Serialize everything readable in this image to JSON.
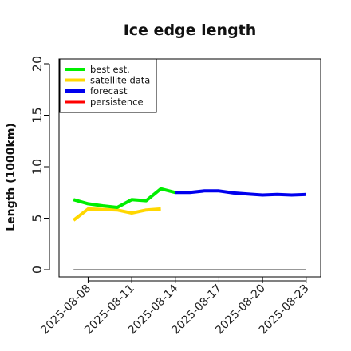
{
  "chart_data": {
    "type": "line",
    "title": "Ice edge length",
    "xlabel": "",
    "ylabel": "Length (1000km)",
    "ylim": [
      0,
      21
    ],
    "xlim": [
      "2025-08-06",
      "2025-08-24"
    ],
    "yticks": [
      "0",
      "5",
      "10",
      "15",
      "20"
    ],
    "xticks": [
      "2025-08-08",
      "2025-08-11",
      "2025-08-14",
      "2025-08-17",
      "2025-08-20",
      "2025-08-23"
    ],
    "highlight_xtick": "2025-08-14",
    "highlight_color": "#228b22",
    "legend_position": "top-left",
    "grid": false,
    "series": [
      {
        "name": "best est.",
        "color": "#00ee00",
        "x": [
          "2025-08-07",
          "2025-08-08",
          "2025-08-09",
          "2025-08-10",
          "2025-08-11",
          "2025-08-12",
          "2025-08-13",
          "2025-08-14"
        ],
        "values": [
          6.8,
          6.4,
          6.2,
          6.05,
          6.8,
          6.7,
          7.85,
          7.5
        ]
      },
      {
        "name": "satellite data",
        "color": "#ffd700",
        "x": [
          "2025-08-07",
          "2025-08-08",
          "2025-08-09",
          "2025-08-10",
          "2025-08-11",
          "2025-08-12",
          "2025-08-13"
        ],
        "values": [
          4.8,
          5.9,
          5.85,
          5.8,
          5.5,
          5.8,
          5.9
        ]
      },
      {
        "name": "forecast",
        "color": "#0000ee",
        "x": [
          "2025-08-14",
          "2025-08-15",
          "2025-08-16",
          "2025-08-17",
          "2025-08-18",
          "2025-08-19",
          "2025-08-20",
          "2025-08-21",
          "2025-08-22",
          "2025-08-23"
        ],
        "values": [
          7.5,
          7.5,
          7.65,
          7.65,
          7.45,
          7.35,
          7.25,
          7.3,
          7.25,
          7.3
        ]
      },
      {
        "name": "persistence",
        "color": "#ff0000",
        "x": [],
        "values": []
      }
    ],
    "reference_line": {
      "color": "#777777",
      "value": 0,
      "x_start": "2025-08-07",
      "x_end": "2025-08-23"
    }
  }
}
